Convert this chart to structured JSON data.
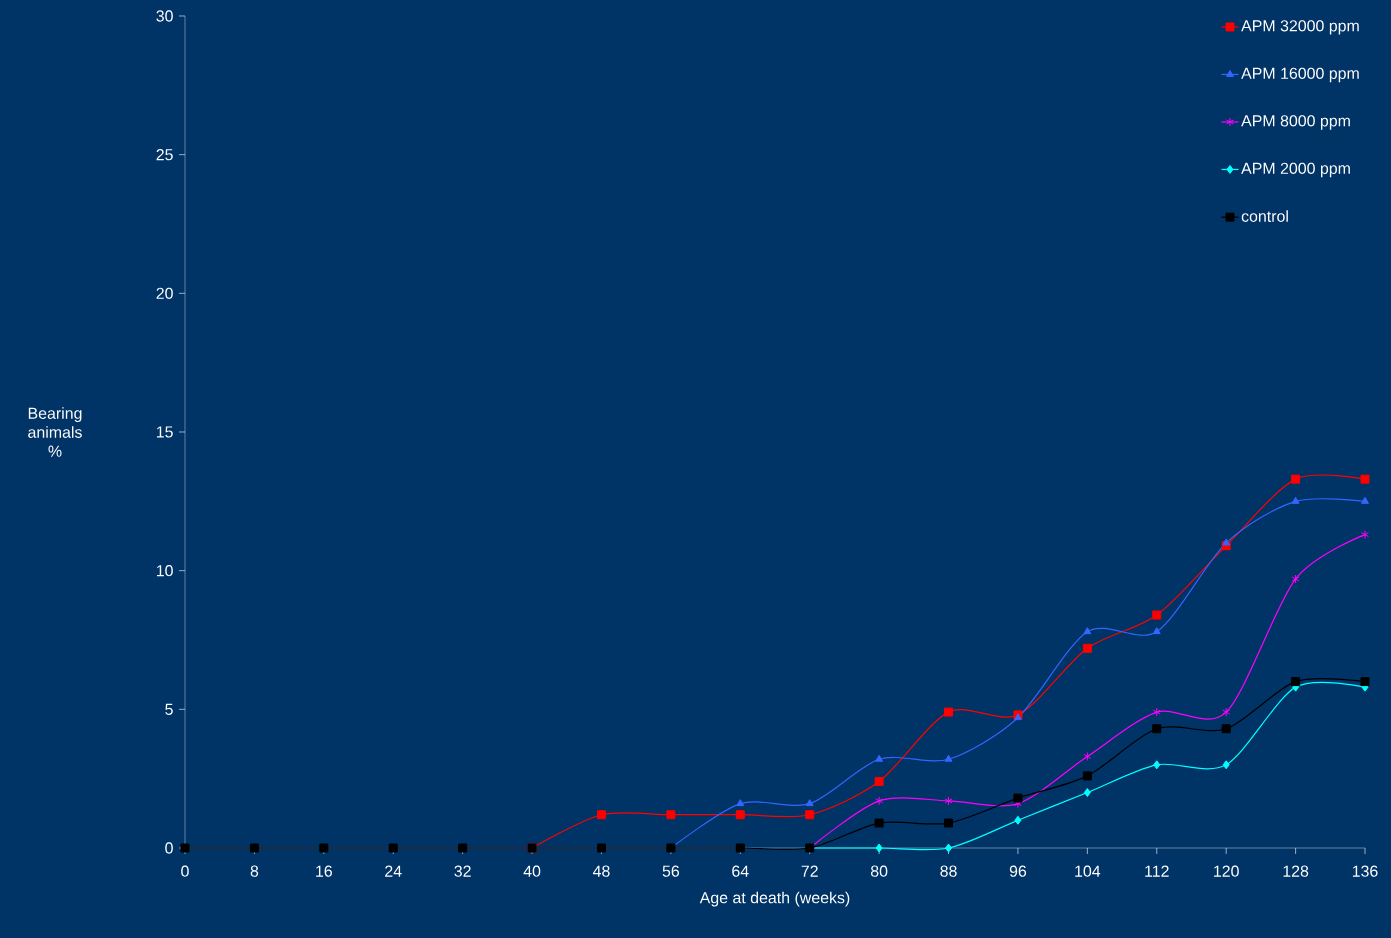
{
  "chart_data": {
    "type": "line",
    "xlabel": "Age at death (weeks)",
    "ylabel": "Bearing animals %",
    "x": [
      0,
      8,
      16,
      24,
      32,
      40,
      48,
      56,
      64,
      72,
      80,
      88,
      96,
      104,
      112,
      120,
      128,
      136
    ],
    "xlim": [
      0,
      136
    ],
    "xticks": [
      0,
      8,
      16,
      24,
      32,
      40,
      48,
      56,
      64,
      72,
      80,
      88,
      96,
      104,
      112,
      120,
      128,
      136
    ],
    "ylim": [
      0,
      30
    ],
    "yticks": [
      0,
      5,
      10,
      15,
      20,
      25,
      30
    ],
    "grid": false,
    "legend": "top right",
    "series": [
      {
        "name": "APM 32000 ppm",
        "color": "#ff0000",
        "marker": "square",
        "values": [
          null,
          null,
          null,
          null,
          null,
          0,
          1.2,
          1.2,
          1.2,
          1.2,
          2.4,
          4.9,
          4.8,
          7.2,
          8.4,
          10.9,
          13.3,
          13.3
        ]
      },
      {
        "name": "APM 16000 ppm",
        "color": "#3366ff",
        "marker": "triangle",
        "values": [
          null,
          null,
          null,
          null,
          null,
          null,
          null,
          0,
          1.6,
          1.6,
          3.2,
          3.2,
          4.7,
          7.8,
          7.8,
          11.0,
          12.5,
          12.5
        ]
      },
      {
        "name": "APM  8000 ppm",
        "color": "#ff00ff",
        "marker": "cross",
        "values": [
          null,
          null,
          null,
          null,
          null,
          null,
          null,
          null,
          null,
          0,
          1.7,
          1.7,
          1.6,
          3.3,
          4.9,
          4.9,
          9.7,
          11.3
        ]
      },
      {
        "name": "APM  2000 ppm",
        "color": "#00ffff",
        "marker": "diamond",
        "values": [
          null,
          null,
          null,
          null,
          null,
          null,
          null,
          null,
          null,
          0,
          0,
          0,
          1.0,
          2.0,
          3.0,
          3.0,
          5.8,
          5.8
        ]
      },
      {
        "name": "control",
        "color": "#000000",
        "marker": "square",
        "values": [
          0,
          0,
          0,
          0,
          0,
          0,
          0,
          0,
          0,
          0,
          0.9,
          0.9,
          1.8,
          2.6,
          4.3,
          4.3,
          6.0,
          6.0
        ]
      }
    ]
  }
}
